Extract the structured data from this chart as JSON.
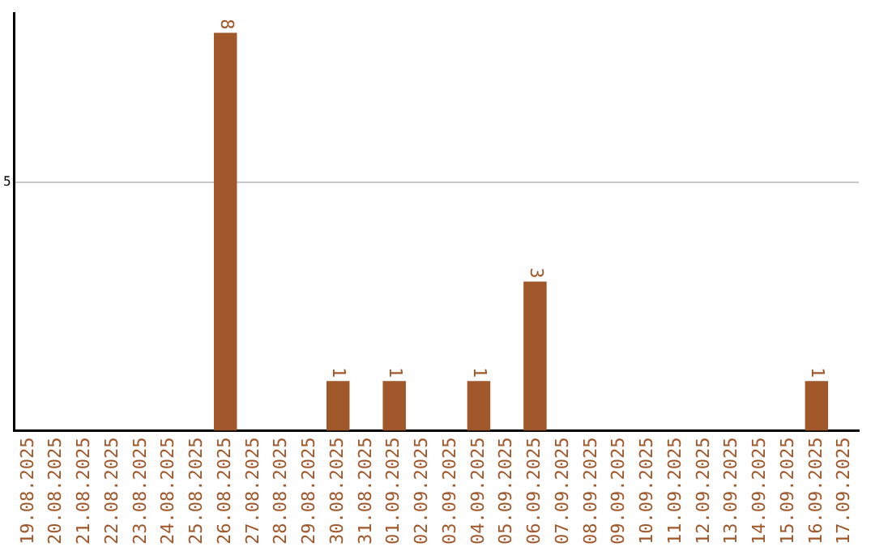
{
  "chart_data": {
    "type": "bar",
    "categories": [
      "19.08.2025",
      "20.08.2025",
      "21.08.2025",
      "22.08.2025",
      "23.08.2025",
      "24.08.2025",
      "25.08.2025",
      "26.08.2025",
      "27.08.2025",
      "28.08.2025",
      "29.08.2025",
      "30.08.2025",
      "31.08.2025",
      "01.09.2025",
      "02.09.2025",
      "03.09.2025",
      "04.09.2025",
      "05.09.2025",
      "06.09.2025",
      "07.09.2025",
      "08.09.2025",
      "09.09.2025",
      "10.09.2025",
      "11.09.2025",
      "12.09.2025",
      "13.09.2025",
      "14.09.2025",
      "15.09.2025",
      "16.09.2025",
      "17.09.2025"
    ],
    "values": [
      0,
      0,
      0,
      0,
      0,
      0,
      0,
      8,
      0,
      0,
      0,
      1,
      0,
      1,
      0,
      0,
      1,
      0,
      3,
      0,
      0,
      0,
      0,
      0,
      0,
      0,
      0,
      0,
      1,
      0
    ],
    "color": "#a0572a",
    "ylim": [
      0,
      8.4
    ],
    "yticks": [
      5
    ],
    "grid": "y",
    "legend": false,
    "value_labels": [
      null,
      null,
      null,
      null,
      null,
      null,
      null,
      "8",
      null,
      null,
      null,
      "1",
      null,
      "1",
      null,
      null,
      "1",
      null,
      "3",
      null,
      null,
      null,
      null,
      null,
      null,
      null,
      null,
      null,
      "1",
      null
    ]
  }
}
